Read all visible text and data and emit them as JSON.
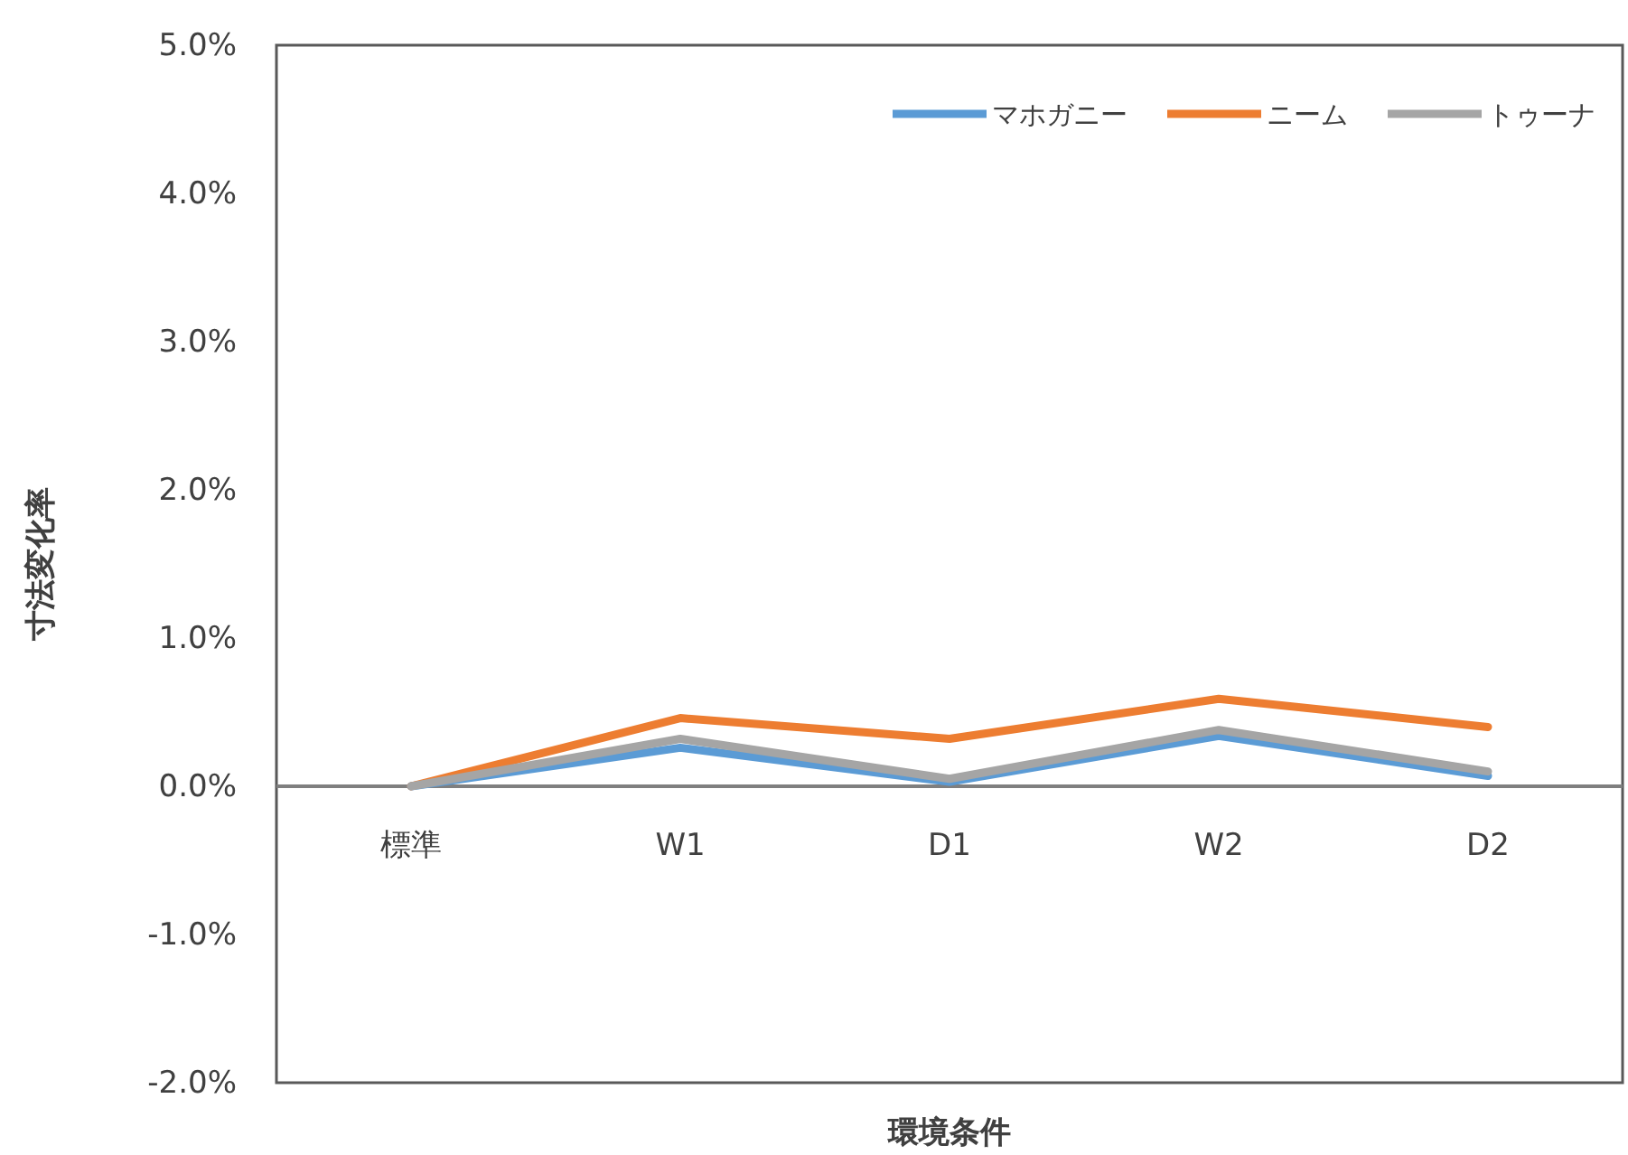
{
  "chart_data": {
    "type": "line",
    "xlabel": "環境条件",
    "ylabel": "寸法変化率",
    "categories": [
      "標準",
      "W1",
      "D1",
      "W2",
      "D2"
    ],
    "series": [
      {
        "name": "マホガニー",
        "color": "#5b9bd5",
        "values": [
          0,
          0.26,
          0.03,
          0.34,
          0.07
        ]
      },
      {
        "name": "ニーム",
        "color": "#ed7d31",
        "values": [
          0,
          0.46,
          0.32,
          0.59,
          0.4
        ]
      },
      {
        "name": "トゥーナ",
        "color": "#a5a5a5",
        "values": [
          0,
          0.32,
          0.05,
          0.38,
          0.1
        ]
      }
    ],
    "ylim": [
      -2,
      5
    ],
    "yticks": [
      {
        "value": -2,
        "label": "-2.0%"
      },
      {
        "value": -1,
        "label": "-1.0%"
      },
      {
        "value": 0,
        "label": "0.0%"
      },
      {
        "value": 1,
        "label": "1.0%"
      },
      {
        "value": 2,
        "label": "2.0%"
      },
      {
        "value": 3,
        "label": "3.0%"
      },
      {
        "value": 4,
        "label": "4.0%"
      },
      {
        "value": 5,
        "label": "5.0%"
      }
    ],
    "grid": false,
    "legend": "top right",
    "marker": "none",
    "line_style": "solid"
  }
}
